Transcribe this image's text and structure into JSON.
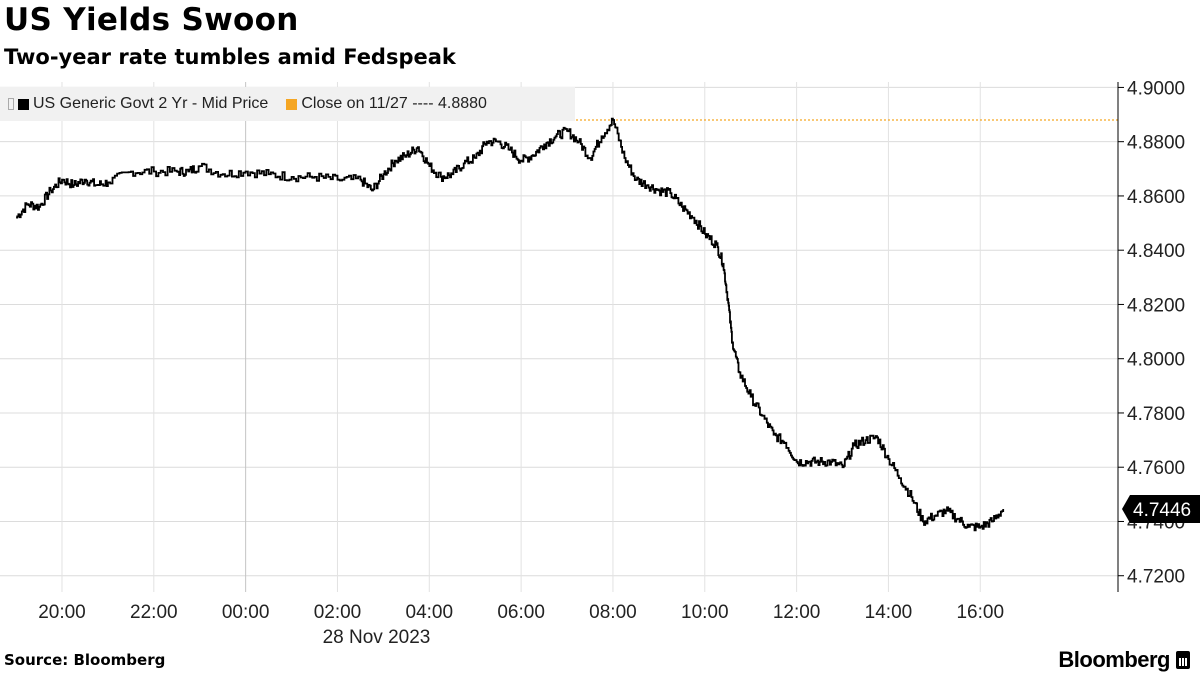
{
  "header": {
    "title": "US Yields Swoon",
    "subtitle": "Two-year rate tumbles amid Fedspeak"
  },
  "legend": {
    "series_label": "US Generic Govt 2 Yr - Mid Price",
    "series_color": "#000000",
    "reference_label": "Close on 11/27 ---- 4.8880",
    "reference_color": "#f5a623"
  },
  "footer": {
    "source": "Source: Bloomberg",
    "brand": "Bloomberg"
  },
  "chart_data": {
    "type": "line",
    "x_unit": "hours relative to 00:00, 28 Nov 2023",
    "xlabel": "28 Nov 2023",
    "xlim": [
      -5.35,
      19.0
    ],
    "xticks": [
      -4,
      -2,
      0,
      2,
      4,
      6,
      8,
      10,
      12,
      14,
      16
    ],
    "xtick_labels": [
      "20:00",
      "22:00",
      "00:00",
      "02:00",
      "04:00",
      "06:00",
      "08:00",
      "10:00",
      "12:00",
      "14:00",
      "16:00"
    ],
    "ylim": [
      4.714,
      4.902
    ],
    "yticks": [
      4.72,
      4.74,
      4.76,
      4.78,
      4.8,
      4.82,
      4.84,
      4.86,
      4.88,
      4.9
    ],
    "ytick_labels": [
      "4.7200",
      "4.7400",
      "4.7600",
      "4.7800",
      "4.8000",
      "4.8200",
      "4.8400",
      "4.8600",
      "4.8800",
      "4.9000"
    ],
    "grid": true,
    "reference_line": {
      "value": 4.888,
      "label": "Close on 11/27"
    },
    "last_value_label": "4.7446",
    "last_value": 4.7446,
    "series": [
      {
        "name": "US Generic Govt 2 Yr - Mid Price",
        "x": [
          -5.0,
          -4.75,
          -4.5,
          -4.25,
          -4.0,
          -3.75,
          -3.5,
          -3.25,
          -3.0,
          -2.5,
          -2.0,
          -1.5,
          -1.25,
          -1.0,
          -0.5,
          0.0,
          0.5,
          1.0,
          1.5,
          2.0,
          2.5,
          2.75,
          3.0,
          3.25,
          3.5,
          3.75,
          4.0,
          4.25,
          4.5,
          4.75,
          5.0,
          5.25,
          5.5,
          5.75,
          6.0,
          6.25,
          6.5,
          6.75,
          7.0,
          7.25,
          7.5,
          7.75,
          8.0,
          8.25,
          8.5,
          8.75,
          9.0,
          9.25,
          9.5,
          9.75,
          10.0,
          10.25,
          10.4,
          10.5,
          10.6,
          10.75,
          11.0,
          11.25,
          11.5,
          11.75,
          12.0,
          12.25,
          12.5,
          12.75,
          13.0,
          13.25,
          13.5,
          13.75,
          14.0,
          14.25,
          14.5,
          14.75,
          15.0,
          15.25,
          15.5,
          15.75,
          16.0,
          16.25,
          16.5
        ],
        "y": [
          4.852,
          4.857,
          4.856,
          4.862,
          4.866,
          4.864,
          4.866,
          4.864,
          4.865,
          4.869,
          4.869,
          4.869,
          4.869,
          4.871,
          4.868,
          4.869,
          4.868,
          4.867,
          4.867,
          4.866,
          4.866,
          4.862,
          4.868,
          4.873,
          4.875,
          4.878,
          4.871,
          4.867,
          4.868,
          4.872,
          4.874,
          4.88,
          4.88,
          4.877,
          4.873,
          4.875,
          4.879,
          4.882,
          4.884,
          4.88,
          4.874,
          4.882,
          4.888,
          4.874,
          4.866,
          4.864,
          4.862,
          4.861,
          4.856,
          4.852,
          4.846,
          4.842,
          4.835,
          4.822,
          4.806,
          4.795,
          4.786,
          4.779,
          4.772,
          4.769,
          4.762,
          4.762,
          4.762,
          4.762,
          4.76,
          4.768,
          4.77,
          4.771,
          4.763,
          4.756,
          4.749,
          4.74,
          4.742,
          4.744,
          4.741,
          4.738,
          4.738,
          4.74,
          4.7446
        ]
      }
    ]
  }
}
